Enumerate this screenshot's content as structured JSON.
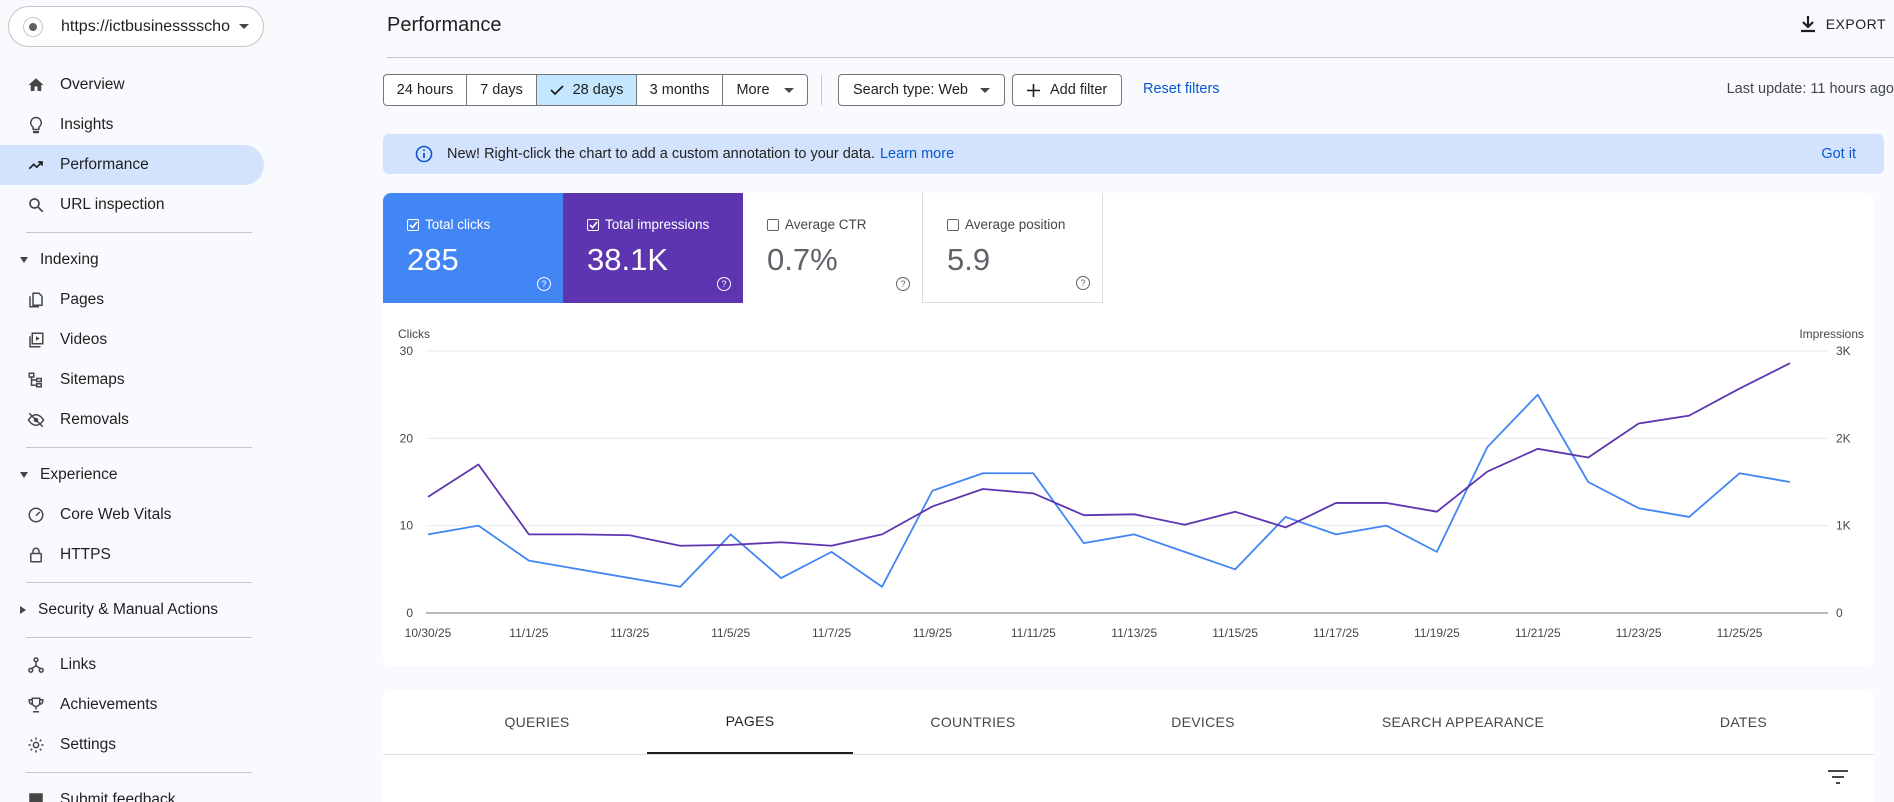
{
  "property": {
    "url": "https://ictbusinesssscho..."
  },
  "sidebar": {
    "items": [
      {
        "label": "Overview",
        "icon": "home-icon"
      },
      {
        "label": "Insights",
        "icon": "lightbulb-icon"
      },
      {
        "label": "Performance",
        "icon": "trending-up-icon",
        "active": true
      },
      {
        "label": "URL inspection",
        "icon": "search-icon"
      }
    ],
    "indexing": {
      "label": "Indexing",
      "items": [
        {
          "label": "Pages",
          "icon": "pages-icon"
        },
        {
          "label": "Videos",
          "icon": "video-icon"
        },
        {
          "label": "Sitemaps",
          "icon": "sitemap-icon"
        },
        {
          "label": "Removals",
          "icon": "eye-off-icon"
        }
      ]
    },
    "experience": {
      "label": "Experience",
      "items": [
        {
          "label": "Core Web Vitals",
          "icon": "speed-icon"
        },
        {
          "label": "HTTPS",
          "icon": "lock-icon"
        }
      ]
    },
    "security": {
      "label": "Security & Manual Actions"
    },
    "bottom": [
      {
        "label": "Links",
        "icon": "links-icon"
      },
      {
        "label": "Achievements",
        "icon": "trophy-icon"
      },
      {
        "label": "Settings",
        "icon": "gear-icon"
      },
      {
        "label": "Submit feedback",
        "icon": "feedback-icon"
      }
    ]
  },
  "header": {
    "title": "Performance",
    "export": "EXPORT"
  },
  "toolbar": {
    "ranges": [
      "24 hours",
      "7 days",
      "28 days",
      "3 months",
      "More"
    ],
    "selected_range": "28 days",
    "search_type": "Search type: Web",
    "add_filter": "Add filter",
    "reset": "Reset filters",
    "last_update": "Last update: 11 hours ago"
  },
  "banner": {
    "text": "New! Right-click the chart to add a custom annotation to your data.",
    "learn_more": "Learn more",
    "got_it": "Got it"
  },
  "metrics": {
    "clicks": {
      "label": "Total clicks",
      "value": "285",
      "checked": true,
      "color": "#4285f4"
    },
    "impressions": {
      "label": "Total impressions",
      "value": "38.1K",
      "checked": true,
      "color": "#5e35b1"
    },
    "ctr": {
      "label": "Average CTR",
      "value": "0.7%",
      "checked": false
    },
    "position": {
      "label": "Average position",
      "value": "5.9",
      "checked": false
    }
  },
  "chart_data": {
    "type": "line",
    "ylabel_left": "Clicks",
    "ylabel_right": "Impressions",
    "left_ticks": [
      "0",
      "10",
      "20",
      "30"
    ],
    "right_ticks": [
      "0",
      "1K",
      "2K",
      "3K"
    ],
    "ylim_left": [
      0,
      30
    ],
    "ylim_right": [
      0,
      3000
    ],
    "x_ticks": [
      "10/30/25",
      "11/1/25",
      "11/3/25",
      "11/5/25",
      "11/7/25",
      "11/9/25",
      "11/11/25",
      "11/13/25",
      "11/15/25",
      "11/17/25",
      "11/19/25",
      "11/21/25",
      "11/23/25",
      "11/25/25"
    ],
    "x": [
      "10/30/25",
      "10/31/25",
      "11/1/25",
      "11/2/25",
      "11/3/25",
      "11/4/25",
      "11/5/25",
      "11/6/25",
      "11/7/25",
      "11/8/25",
      "11/9/25",
      "11/10/25",
      "11/11/25",
      "11/12/25",
      "11/13/25",
      "11/14/25",
      "11/15/25",
      "11/16/25",
      "11/17/25",
      "11/18/25",
      "11/19/25",
      "11/20/25",
      "11/21/25",
      "11/22/25",
      "11/23/25",
      "11/24/25",
      "11/25/25",
      "11/26/25"
    ],
    "series": [
      {
        "name": "Clicks",
        "axis": "left",
        "color": "#4285f4",
        "values": [
          9,
          10,
          6,
          5,
          4,
          3,
          9,
          4,
          7,
          3,
          14,
          16,
          16,
          8,
          9,
          7,
          5,
          11,
          9,
          10,
          7,
          19,
          25,
          15,
          12,
          11,
          16,
          15
        ]
      },
      {
        "name": "Impressions",
        "axis": "right",
        "color": "#5e35b1",
        "values": [
          1330,
          1700,
          900,
          900,
          890,
          770,
          780,
          810,
          770,
          900,
          1220,
          1420,
          1370,
          1120,
          1130,
          1010,
          1160,
          980,
          1260,
          1260,
          1160,
          1620,
          1880,
          1780,
          2170,
          2260,
          2570,
          2860
        ]
      }
    ]
  },
  "tabs": [
    "QUERIES",
    "PAGES",
    "COUNTRIES",
    "DEVICES",
    "SEARCH APPEARANCE",
    "DATES"
  ],
  "active_tab": "PAGES"
}
